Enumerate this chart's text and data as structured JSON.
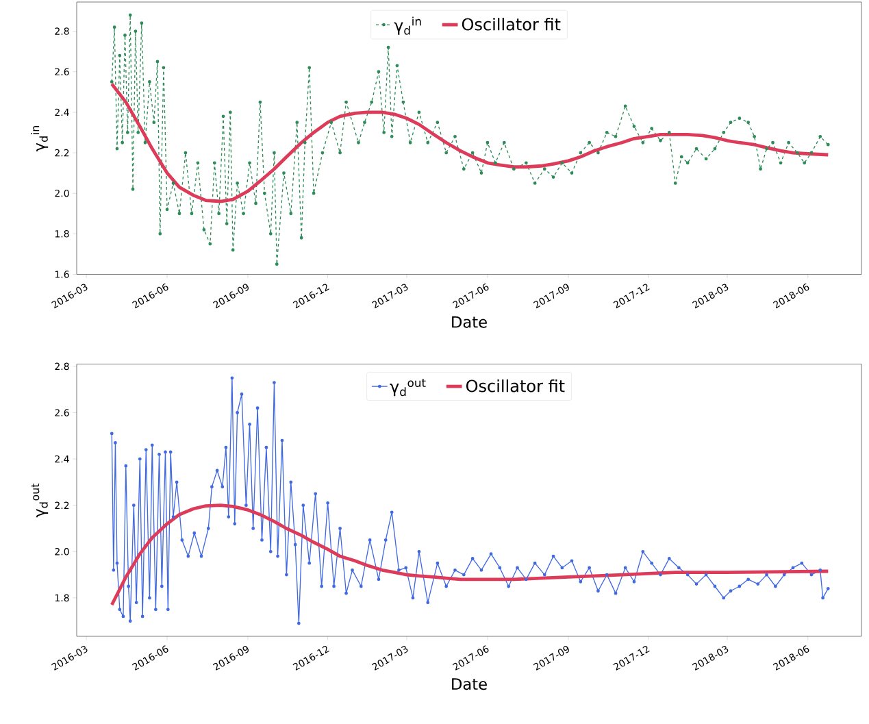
{
  "chart_data": [
    {
      "type": "line",
      "xlabel": "Date",
      "ylabel": "γ$_{d}$$^{in}$",
      "legend": "top",
      "grid": false,
      "xlim": [
        "2016-02-19",
        "2018-08-01"
      ],
      "ylim": [
        1.6,
        2.944
      ],
      "xticks": [
        "2016-03",
        "2016-06",
        "2016-09",
        "2016-12",
        "2017-03",
        "2017-06",
        "2017-09",
        "2017-12",
        "2018-03",
        "2018-06"
      ],
      "yticks": [
        1.6,
        1.8,
        {
          "value": 2.0,
          "label": "2.0"
        },
        2.2,
        2.4,
        2.6,
        2.8
      ],
      "series": [
        {
          "name": "γ$_{d}$$^{in}$",
          "color": "#2e8b57",
          "marker": "circle",
          "line_style": "dashed",
          "x": [
            "2016-03-30",
            "2016-04-02",
            "2016-04-05",
            "2016-04-08",
            "2016-04-11",
            "2016-04-14",
            "2016-04-17",
            "2016-04-20",
            "2016-04-23",
            "2016-04-26",
            "2016-04-29",
            "2016-05-03",
            "2016-05-07",
            "2016-05-12",
            "2016-05-17",
            "2016-05-21",
            "2016-05-24",
            "2016-05-28",
            "2016-06-01",
            "2016-06-08",
            "2016-06-15",
            "2016-06-22",
            "2016-06-29",
            "2016-07-06",
            "2016-07-13",
            "2016-07-20",
            "2016-07-25",
            "2016-07-30",
            "2016-08-04",
            "2016-08-08",
            "2016-08-12",
            "2016-08-15",
            "2016-08-20",
            "2016-08-27",
            "2016-09-03",
            "2016-09-10",
            "2016-09-15",
            "2016-09-20",
            "2016-09-27",
            "2016-10-01",
            "2016-10-04",
            "2016-10-12",
            "2016-10-20",
            "2016-10-27",
            "2016-11-01",
            "2016-11-05",
            "2016-11-10",
            "2016-11-15",
            "2016-11-25",
            "2016-12-05",
            "2016-12-15",
            "2016-12-22",
            "2017-01-05",
            "2017-01-12",
            "2017-01-20",
            "2017-01-28",
            "2017-02-03",
            "2017-02-08",
            "2017-02-12",
            "2017-02-18",
            "2017-02-25",
            "2017-03-05",
            "2017-03-15",
            "2017-03-25",
            "2017-04-05",
            "2017-04-15",
            "2017-04-25",
            "2017-05-05",
            "2017-05-15",
            "2017-05-25",
            "2017-06-01",
            "2017-06-10",
            "2017-06-20",
            "2017-07-01",
            "2017-07-15",
            "2017-07-25",
            "2017-08-05",
            "2017-08-15",
            "2017-08-25",
            "2017-09-05",
            "2017-09-15",
            "2017-09-25",
            "2017-10-05",
            "2017-10-15",
            "2017-10-25",
            "2017-11-05",
            "2017-11-15",
            "2017-11-25",
            "2017-12-05",
            "2017-12-15",
            "2017-12-25",
            "2018-01-01",
            "2018-01-08",
            "2018-01-15",
            "2018-01-25",
            "2018-02-05",
            "2018-02-15",
            "2018-02-25",
            "2018-03-05",
            "2018-03-15",
            "2018-03-25",
            "2018-04-01",
            "2018-04-08",
            "2018-04-15",
            "2018-04-22",
            "2018-05-01",
            "2018-05-10",
            "2018-05-20",
            "2018-05-28",
            "2018-06-05",
            "2018-06-15",
            "2018-06-24"
          ],
          "values": [
            2.55,
            2.82,
            2.22,
            2.68,
            2.25,
            2.78,
            2.3,
            2.88,
            2.02,
            2.8,
            2.3,
            2.84,
            2.25,
            2.55,
            2.35,
            2.65,
            1.8,
            2.62,
            1.92,
            2.05,
            1.9,
            2.2,
            1.9,
            2.15,
            1.82,
            1.75,
            2.15,
            1.9,
            2.38,
            1.85,
            2.4,
            1.72,
            2.05,
            1.9,
            2.15,
            1.95,
            2.45,
            2.0,
            1.8,
            2.2,
            1.65,
            2.1,
            1.9,
            2.35,
            1.78,
            2.25,
            2.62,
            2.0,
            2.2,
            2.35,
            2.2,
            2.45,
            2.25,
            2.35,
            2.45,
            2.6,
            2.3,
            2.72,
            2.28,
            2.63,
            2.45,
            2.25,
            2.4,
            2.25,
            2.35,
            2.2,
            2.28,
            2.12,
            2.2,
            2.1,
            2.25,
            2.15,
            2.25,
            2.12,
            2.15,
            2.05,
            2.12,
            2.08,
            2.15,
            2.1,
            2.2,
            2.25,
            2.2,
            2.3,
            2.28,
            2.43,
            2.33,
            2.25,
            2.32,
            2.26,
            2.3,
            2.05,
            2.18,
            2.15,
            2.22,
            2.17,
            2.22,
            2.3,
            2.35,
            2.37,
            2.35,
            2.28,
            2.12,
            2.22,
            2.25,
            2.15,
            2.25,
            2.2,
            2.15,
            2.2,
            2.28,
            2.24
          ]
        },
        {
          "name": "Oscillator fit",
          "color": "#dc3c5a",
          "marker": "none",
          "line_style": "solid",
          "x": [
            "2016-03-30",
            "2016-04-15",
            "2016-05-01",
            "2016-05-15",
            "2016-06-01",
            "2016-06-15",
            "2016-07-01",
            "2016-07-15",
            "2016-08-01",
            "2016-08-15",
            "2016-09-01",
            "2016-09-15",
            "2016-10-01",
            "2016-10-15",
            "2016-11-01",
            "2016-11-15",
            "2016-12-01",
            "2016-12-15",
            "2017-01-01",
            "2017-01-15",
            "2017-02-01",
            "2017-02-15",
            "2017-03-01",
            "2017-03-15",
            "2017-04-01",
            "2017-04-15",
            "2017-05-01",
            "2017-05-15",
            "2017-06-01",
            "2017-06-15",
            "2017-07-01",
            "2017-07-15",
            "2017-08-01",
            "2017-08-15",
            "2017-09-01",
            "2017-09-15",
            "2017-10-01",
            "2017-10-15",
            "2017-11-01",
            "2017-11-15",
            "2017-12-01",
            "2017-12-15",
            "2018-01-01",
            "2018-01-15",
            "2018-02-01",
            "2018-02-15",
            "2018-03-01",
            "2018-03-15",
            "2018-04-01",
            "2018-04-15",
            "2018-05-01",
            "2018-05-15",
            "2018-06-01",
            "2018-06-24"
          ],
          "values": [
            2.54,
            2.45,
            2.33,
            2.22,
            2.1,
            2.03,
            1.99,
            1.965,
            1.96,
            1.97,
            2.01,
            2.06,
            2.12,
            2.18,
            2.25,
            2.3,
            2.35,
            2.38,
            2.395,
            2.4,
            2.4,
            2.39,
            2.37,
            2.34,
            2.29,
            2.25,
            2.21,
            2.18,
            2.15,
            2.14,
            2.13,
            2.13,
            2.135,
            2.145,
            2.16,
            2.18,
            2.21,
            2.23,
            2.25,
            2.27,
            2.28,
            2.29,
            2.29,
            2.29,
            2.285,
            2.275,
            2.26,
            2.25,
            2.24,
            2.225,
            2.21,
            2.2,
            2.195,
            2.19
          ]
        }
      ]
    },
    {
      "type": "line",
      "xlabel": "Date",
      "ylabel": "γ$_{d}$$^{out}$",
      "legend": "top",
      "grid": false,
      "xlim": [
        "2016-02-19",
        "2018-08-01"
      ],
      "ylim": [
        1.634,
        2.81
      ],
      "xticks": [
        "2016-03",
        "2016-06",
        "2016-09",
        "2016-12",
        "2017-03",
        "2017-06",
        "2017-09",
        "2017-12",
        "2018-03",
        "2018-06"
      ],
      "yticks": [
        1.8,
        {
          "value": 2.0,
          "label": "2.0"
        },
        2.2,
        2.4,
        2.6,
        2.8
      ],
      "series": [
        {
          "name": "γ$_{d}$$^{out}$",
          "color": "#4169e1",
          "marker": "circle",
          "line_style": "solid",
          "x": [
            "2016-03-30",
            "2016-04-01",
            "2016-04-03",
            "2016-04-05",
            "2016-04-08",
            "2016-04-12",
            "2016-04-15",
            "2016-04-18",
            "2016-04-20",
            "2016-04-24",
            "2016-04-27",
            "2016-05-01",
            "2016-05-04",
            "2016-05-08",
            "2016-05-12",
            "2016-05-15",
            "2016-05-19",
            "2016-05-23",
            "2016-05-26",
            "2016-05-30",
            "2016-06-02",
            "2016-06-05",
            "2016-06-08",
            "2016-06-12",
            "2016-06-18",
            "2016-06-25",
            "2016-07-02",
            "2016-07-10",
            "2016-07-18",
            "2016-07-22",
            "2016-07-28",
            "2016-08-03",
            "2016-08-07",
            "2016-08-10",
            "2016-08-14",
            "2016-08-17",
            "2016-08-20",
            "2016-08-25",
            "2016-08-30",
            "2016-09-03",
            "2016-09-07",
            "2016-09-12",
            "2016-09-17",
            "2016-09-22",
            "2016-09-27",
            "2016-10-01",
            "2016-10-05",
            "2016-10-10",
            "2016-10-15",
            "2016-10-20",
            "2016-10-25",
            "2016-10-29",
            "2016-11-03",
            "2016-11-10",
            "2016-11-17",
            "2016-11-24",
            "2016-12-01",
            "2016-12-08",
            "2016-12-15",
            "2016-12-22",
            "2016-12-29",
            "2017-01-08",
            "2017-01-18",
            "2017-01-28",
            "2017-02-05",
            "2017-02-12",
            "2017-02-20",
            "2017-02-28",
            "2017-03-08",
            "2017-03-15",
            "2017-03-25",
            "2017-04-05",
            "2017-04-15",
            "2017-04-25",
            "2017-05-05",
            "2017-05-15",
            "2017-05-25",
            "2017-06-05",
            "2017-06-15",
            "2017-06-25",
            "2017-07-05",
            "2017-07-15",
            "2017-07-25",
            "2017-08-05",
            "2017-08-15",
            "2017-08-25",
            "2017-09-05",
            "2017-09-15",
            "2017-09-25",
            "2017-10-05",
            "2017-10-15",
            "2017-10-25",
            "2017-11-05",
            "2017-11-15",
            "2017-11-25",
            "2017-12-05",
            "2017-12-15",
            "2017-12-25",
            "2018-01-05",
            "2018-01-15",
            "2018-01-25",
            "2018-02-05",
            "2018-02-15",
            "2018-02-25",
            "2018-03-05",
            "2018-03-15",
            "2018-03-25",
            "2018-04-05",
            "2018-04-15",
            "2018-04-25",
            "2018-05-05",
            "2018-05-15",
            "2018-05-25",
            "2018-06-05",
            "2018-06-15",
            "2018-06-18",
            "2018-06-24"
          ],
          "values": [
            2.51,
            1.92,
            2.47,
            1.95,
            1.75,
            1.72,
            2.37,
            1.85,
            1.7,
            2.2,
            1.78,
            2.4,
            1.72,
            2.44,
            1.8,
            2.46,
            1.75,
            2.42,
            1.85,
            2.43,
            1.75,
            2.43,
            2.15,
            2.3,
            2.05,
            1.98,
            2.08,
            1.98,
            2.1,
            2.28,
            2.35,
            2.28,
            2.45,
            2.15,
            2.75,
            2.12,
            2.6,
            2.68,
            2.2,
            2.55,
            2.1,
            2.62,
            2.05,
            2.45,
            2.0,
            2.73,
            1.98,
            2.48,
            1.9,
            2.3,
            2.03,
            1.69,
            2.2,
            1.95,
            2.25,
            1.85,
            2.21,
            1.85,
            2.1,
            1.82,
            1.92,
            1.85,
            2.05,
            1.88,
            2.05,
            2.17,
            1.92,
            1.93,
            1.8,
            2.0,
            1.78,
            1.95,
            1.85,
            1.92,
            1.9,
            1.97,
            1.92,
            1.99,
            1.93,
            1.85,
            1.93,
            1.88,
            1.95,
            1.9,
            1.98,
            1.93,
            1.96,
            1.87,
            1.93,
            1.83,
            1.9,
            1.82,
            1.93,
            1.87,
            2.0,
            1.95,
            1.9,
            1.97,
            1.93,
            1.9,
            1.86,
            1.9,
            1.85,
            1.8,
            1.83,
            1.85,
            1.88,
            1.86,
            1.9,
            1.85,
            1.9,
            1.93,
            1.95,
            1.9,
            1.92,
            1.8,
            1.84
          ]
        },
        {
          "name": "Oscillator fit",
          "color": "#dc3c5a",
          "marker": "none",
          "line_style": "solid",
          "x": [
            "2016-03-30",
            "2016-04-15",
            "2016-05-01",
            "2016-05-15",
            "2016-06-01",
            "2016-06-15",
            "2016-07-01",
            "2016-07-15",
            "2016-08-01",
            "2016-08-15",
            "2016-09-01",
            "2016-09-15",
            "2016-10-01",
            "2016-10-15",
            "2016-11-01",
            "2016-11-15",
            "2016-12-01",
            "2016-12-15",
            "2017-01-01",
            "2017-01-15",
            "2017-02-01",
            "2017-02-15",
            "2017-03-01",
            "2017-03-15",
            "2017-04-01",
            "2017-04-15",
            "2017-05-01",
            "2017-06-01",
            "2017-07-01",
            "2017-08-01",
            "2017-09-01",
            "2017-10-01",
            "2017-11-01",
            "2017-12-01",
            "2018-01-01",
            "2018-03-01",
            "2018-06-24"
          ],
          "values": [
            1.77,
            1.89,
            1.99,
            2.06,
            2.12,
            2.16,
            2.185,
            2.197,
            2.2,
            2.195,
            2.18,
            2.16,
            2.13,
            2.1,
            2.07,
            2.04,
            2.01,
            1.98,
            1.96,
            1.94,
            1.92,
            1.91,
            1.9,
            1.895,
            1.89,
            1.885,
            1.88,
            1.88,
            1.88,
            1.885,
            1.89,
            1.895,
            1.9,
            1.905,
            1.91,
            1.91,
            1.915
          ]
        }
      ]
    }
  ]
}
